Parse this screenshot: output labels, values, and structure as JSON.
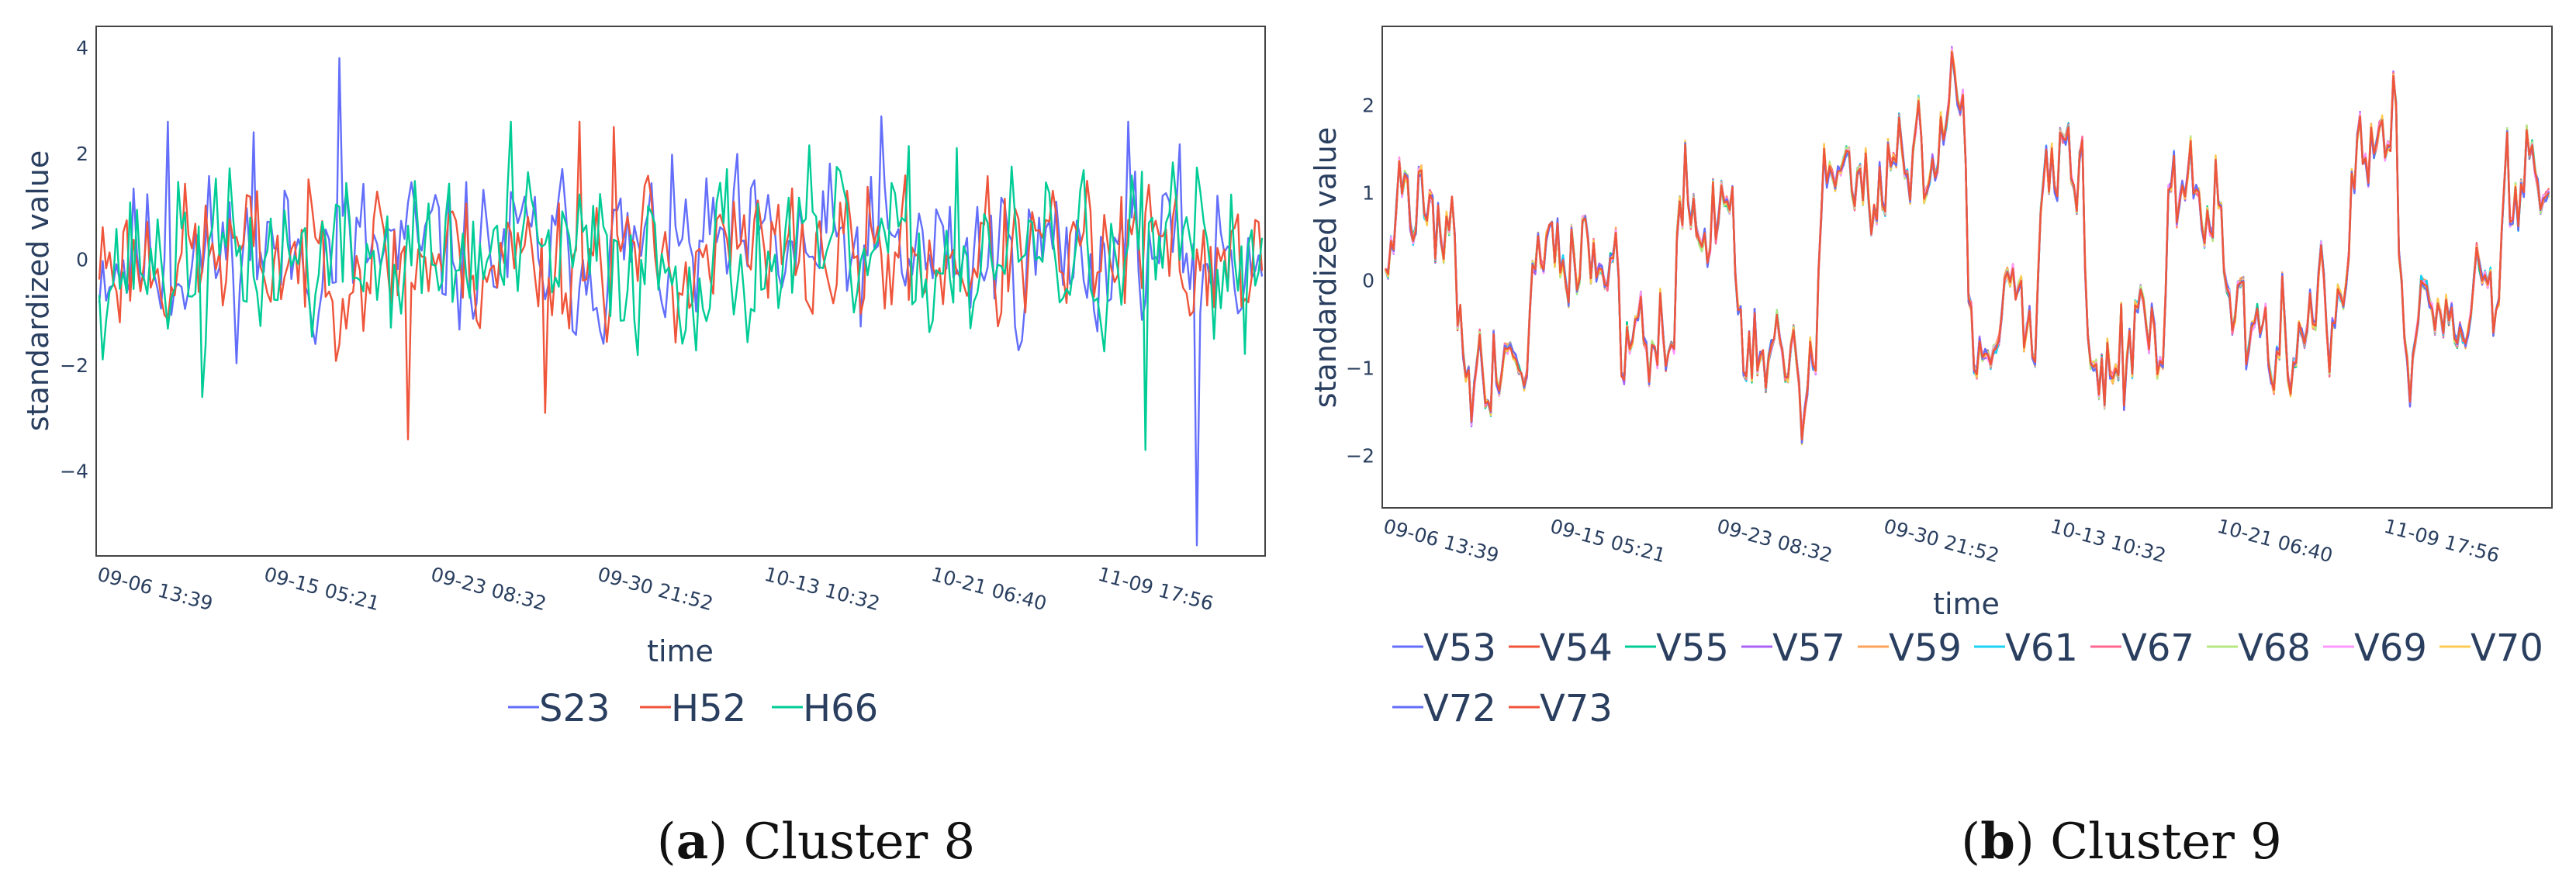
{
  "chart_data": [
    {
      "type": "line",
      "caption_letter": "a",
      "caption_text": ") Cluster 8",
      "caption_open": "(",
      "xlabel": "time",
      "ylabel": "standardized value",
      "ylim": [
        -5.6,
        4.4
      ],
      "yticks": [
        -4,
        -2,
        0,
        2,
        4
      ],
      "yticklabels": [
        "−4",
        "−2",
        "0",
        "2",
        "4"
      ],
      "xticklabels": [
        "09-06 13:39",
        "09-15 05:21",
        "09-23 08:32",
        "09-30 21:52",
        "10-13 10:32",
        "10-21 06:40",
        "11-09 17:56"
      ],
      "n_points": 340,
      "series": [
        {
          "name": "S23",
          "color": "#636efa",
          "mean": 0.1,
          "amp": 1.2,
          "seed": 11,
          "spikes": [
            [
              70,
              3.8
            ],
            [
              20,
              2.6
            ],
            [
              228,
              2.7
            ],
            [
              320,
              -5.4
            ],
            [
              45,
              2.4
            ],
            [
              300,
              2.6
            ]
          ]
        },
        {
          "name": "H52",
          "color": "#ef553b",
          "mean": 0.05,
          "amp": 1.1,
          "seed": 23,
          "spikes": [
            [
              90,
              -3.4
            ],
            [
              130,
              -2.9
            ],
            [
              140,
              2.6
            ],
            [
              150,
              2.5
            ]
          ]
        },
        {
          "name": "H66",
          "color": "#00cc96",
          "mean": 0.0,
          "amp": 1.25,
          "seed": 37,
          "spikes": [
            [
              305,
              -3.6
            ],
            [
              30,
              -2.6
            ],
            [
              120,
              2.6
            ],
            [
              250,
              2.1
            ]
          ]
        }
      ]
    },
    {
      "type": "line",
      "caption_letter": "b",
      "caption_text": ") Cluster 9",
      "caption_open": "(",
      "xlabel": "time",
      "ylabel": "standardized value",
      "ylim": [
        -2.6,
        2.9
      ],
      "yticks": [
        -2,
        -1,
        0,
        1,
        2
      ],
      "yticklabels": [
        "−2",
        "−1",
        "0",
        "1",
        "2"
      ],
      "xticklabels": [
        "09-06 13:39",
        "09-15 05:21",
        "09-23 08:32",
        "09-30 21:52",
        "10-13 10:32",
        "10-21 06:40",
        "11-09 17:56"
      ],
      "n_points": 420,
      "regimes": [
        [
          0,
          0.9
        ],
        [
          0.06,
          -0.9
        ],
        [
          0.12,
          0.3
        ],
        [
          0.2,
          -0.6
        ],
        [
          0.25,
          0.7
        ],
        [
          0.3,
          -1.1
        ],
        [
          0.37,
          1.3
        ],
        [
          0.45,
          1.6
        ],
        [
          0.5,
          -0.5
        ],
        [
          0.56,
          1.2
        ],
        [
          0.6,
          -0.8
        ],
        [
          0.67,
          1.0
        ],
        [
          0.72,
          -0.5
        ],
        [
          0.8,
          -0.4
        ],
        [
          0.83,
          1.8
        ],
        [
          0.87,
          -0.5
        ],
        [
          0.93,
          0.0
        ],
        [
          0.96,
          1.2
        ]
      ],
      "series": [
        {
          "name": "V53",
          "color": "#636efa"
        },
        {
          "name": "V54",
          "color": "#ef553b"
        },
        {
          "name": "V55",
          "color": "#00cc96"
        },
        {
          "name": "V57",
          "color": "#ab63fa"
        },
        {
          "name": "V59",
          "color": "#ffa15a"
        },
        {
          "name": "V61",
          "color": "#19d3f3"
        },
        {
          "name": "V67",
          "color": "#ff6692"
        },
        {
          "name": "V68",
          "color": "#b6e880"
        },
        {
          "name": "V69",
          "color": "#ff97ff"
        },
        {
          "name": "V70",
          "color": "#fecb52"
        },
        {
          "name": "V72",
          "color": "#636efa"
        },
        {
          "name": "V73",
          "color": "#ef553b"
        }
      ]
    }
  ]
}
